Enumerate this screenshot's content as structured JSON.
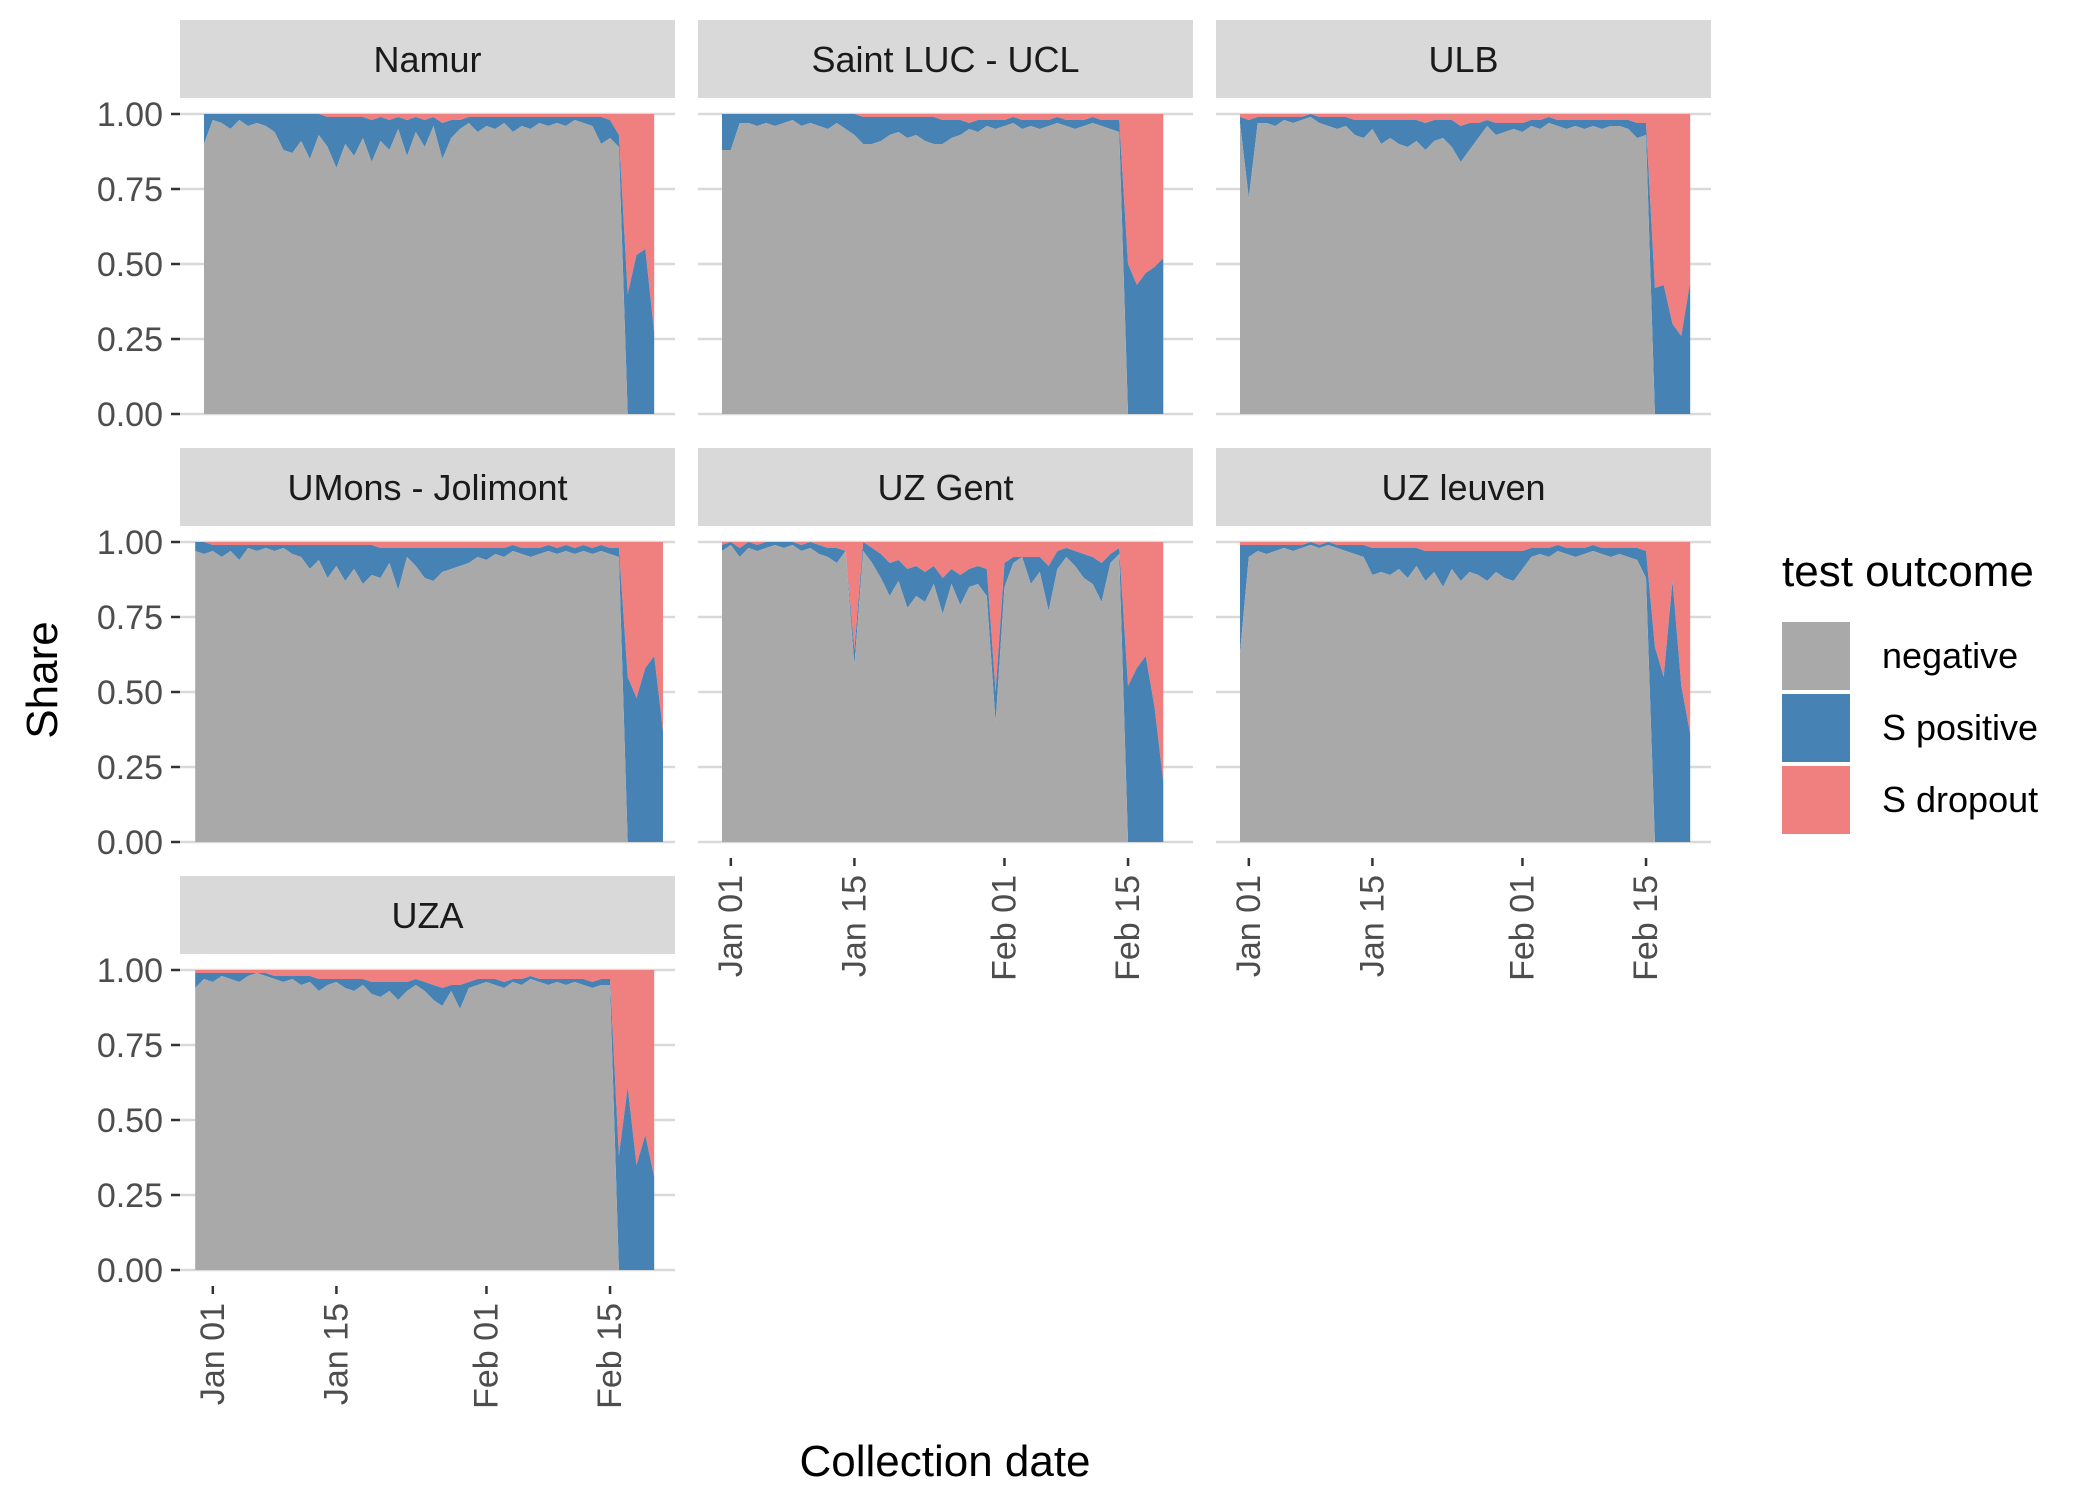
{
  "chart_data": {
    "type": "area",
    "stacked": true,
    "normalized": true,
    "xlabel": "Collection date",
    "ylabel": "Share",
    "x_ticks": [
      "Jan 01",
      "Jan 15",
      "Feb 01",
      "Feb 15"
    ],
    "x_tick_dates": [
      "2021-01-01",
      "2021-01-15",
      "2021-02-01",
      "2021-02-15"
    ],
    "y_ticks": [
      "0.00",
      "0.25",
      "0.50",
      "0.75",
      "1.00"
    ],
    "ylim": [
      0,
      1
    ],
    "grid": true,
    "legend": {
      "title": "test outcome",
      "position": "right",
      "entries": [
        {
          "name": "negative",
          "color": "#A9A9A9"
        },
        {
          "name": "S positive",
          "color": "#4682B4"
        },
        {
          "name": "S dropout",
          "color": "#F08080"
        }
      ]
    },
    "panel_background": "#FFFFFF",
    "strip_background": "#D9D9D9",
    "gridline_color": "#D9D9D9",
    "panels": [
      {
        "label": "Namur",
        "x_start": "2020-12-31",
        "x_end": "2021-02-20",
        "negative": [
          0.9,
          0.98,
          0.97,
          0.95,
          0.98,
          0.96,
          0.97,
          0.96,
          0.94,
          0.88,
          0.87,
          0.91,
          0.85,
          0.93,
          0.89,
          0.82,
          0.9,
          0.86,
          0.92,
          0.84,
          0.91,
          0.88,
          0.95,
          0.86,
          0.94,
          0.89,
          0.96,
          0.85,
          0.92,
          0.95,
          0.97,
          0.94,
          0.96,
          0.95,
          0.97,
          0.94,
          0.96,
          0.95,
          0.97,
          0.96,
          0.97,
          0.96,
          0.98,
          0.97,
          0.96,
          0.9,
          0.92,
          0.89,
          0.0,
          0.0,
          0.0,
          0.0
        ],
        "s_positive": [
          0.1,
          0.02,
          0.03,
          0.05,
          0.02,
          0.04,
          0.03,
          0.04,
          0.06,
          0.12,
          0.13,
          0.09,
          0.15,
          0.07,
          0.1,
          0.17,
          0.09,
          0.13,
          0.07,
          0.14,
          0.08,
          0.1,
          0.04,
          0.12,
          0.05,
          0.09,
          0.03,
          0.12,
          0.06,
          0.03,
          0.02,
          0.05,
          0.03,
          0.04,
          0.02,
          0.05,
          0.03,
          0.04,
          0.02,
          0.03,
          0.02,
          0.03,
          0.01,
          0.02,
          0.03,
          0.09,
          0.06,
          0.04,
          0.4,
          0.53,
          0.55,
          0.27
        ]
      },
      {
        "label": "Saint LUC - UCL",
        "x_start": "2020-12-31",
        "x_end": "2021-02-20",
        "negative": [
          0.88,
          0.88,
          0.97,
          0.97,
          0.96,
          0.97,
          0.96,
          0.97,
          0.98,
          0.96,
          0.97,
          0.96,
          0.95,
          0.97,
          0.95,
          0.93,
          0.9,
          0.9,
          0.91,
          0.93,
          0.94,
          0.92,
          0.93,
          0.91,
          0.9,
          0.9,
          0.92,
          0.93,
          0.95,
          0.94,
          0.96,
          0.95,
          0.96,
          0.97,
          0.95,
          0.96,
          0.95,
          0.96,
          0.97,
          0.96,
          0.95,
          0.96,
          0.97,
          0.96,
          0.95,
          0.94,
          0.0,
          0.0,
          0.0,
          0.0,
          0.0
        ],
        "s_positive": [
          0.12,
          0.12,
          0.03,
          0.03,
          0.04,
          0.03,
          0.04,
          0.03,
          0.02,
          0.04,
          0.03,
          0.04,
          0.05,
          0.03,
          0.05,
          0.07,
          0.09,
          0.09,
          0.08,
          0.06,
          0.05,
          0.07,
          0.06,
          0.08,
          0.09,
          0.08,
          0.06,
          0.05,
          0.02,
          0.04,
          0.02,
          0.03,
          0.02,
          0.02,
          0.03,
          0.02,
          0.03,
          0.02,
          0.02,
          0.02,
          0.03,
          0.02,
          0.02,
          0.02,
          0.03,
          0.04,
          0.5,
          0.43,
          0.47,
          0.49,
          0.52
        ]
      },
      {
        "label": "ULB",
        "x_start": "2020-12-31",
        "x_end": "2021-02-20",
        "negative": [
          0.97,
          0.72,
          0.97,
          0.97,
          0.96,
          0.98,
          0.97,
          0.98,
          0.99,
          0.97,
          0.96,
          0.95,
          0.96,
          0.93,
          0.92,
          0.95,
          0.9,
          0.92,
          0.9,
          0.89,
          0.91,
          0.88,
          0.91,
          0.92,
          0.89,
          0.84,
          0.88,
          0.92,
          0.96,
          0.93,
          0.94,
          0.95,
          0.94,
          0.96,
          0.95,
          0.97,
          0.96,
          0.95,
          0.96,
          0.95,
          0.96,
          0.95,
          0.96,
          0.96,
          0.95,
          0.92,
          0.93,
          0.0,
          0.0,
          0.0,
          0.0,
          0.0
        ],
        "s_positive": [
          0.02,
          0.26,
          0.02,
          0.02,
          0.03,
          0.01,
          0.02,
          0.01,
          0.01,
          0.02,
          0.03,
          0.04,
          0.03,
          0.05,
          0.06,
          0.03,
          0.08,
          0.06,
          0.08,
          0.09,
          0.07,
          0.09,
          0.07,
          0.06,
          0.09,
          0.12,
          0.09,
          0.05,
          0.02,
          0.04,
          0.03,
          0.02,
          0.03,
          0.02,
          0.03,
          0.02,
          0.02,
          0.03,
          0.02,
          0.03,
          0.02,
          0.03,
          0.02,
          0.02,
          0.03,
          0.05,
          0.04,
          0.42,
          0.43,
          0.3,
          0.26,
          0.44
        ]
      },
      {
        "label": "UMons - Jolimont",
        "x_start": "2020-12-30",
        "x_end": "2021-02-20",
        "negative": [
          0.97,
          0.96,
          0.97,
          0.95,
          0.97,
          0.94,
          0.98,
          0.97,
          0.98,
          0.97,
          0.98,
          0.96,
          0.95,
          0.91,
          0.94,
          0.88,
          0.92,
          0.87,
          0.91,
          0.86,
          0.89,
          0.88,
          0.93,
          0.84,
          0.95,
          0.92,
          0.88,
          0.87,
          0.9,
          0.91,
          0.92,
          0.93,
          0.95,
          0.94,
          0.96,
          0.95,
          0.97,
          0.96,
          0.95,
          0.96,
          0.97,
          0.96,
          0.97,
          0.96,
          0.97,
          0.96,
          0.97,
          0.96,
          0.95,
          0.0,
          0.0,
          0.0,
          0.0,
          0.0
        ],
        "s_positive": [
          0.03,
          0.04,
          0.02,
          0.04,
          0.02,
          0.05,
          0.01,
          0.02,
          0.01,
          0.02,
          0.01,
          0.03,
          0.04,
          0.08,
          0.05,
          0.11,
          0.07,
          0.12,
          0.08,
          0.13,
          0.1,
          0.1,
          0.05,
          0.14,
          0.03,
          0.06,
          0.1,
          0.11,
          0.08,
          0.07,
          0.06,
          0.05,
          0.03,
          0.04,
          0.02,
          0.03,
          0.02,
          0.02,
          0.03,
          0.02,
          0.02,
          0.02,
          0.02,
          0.02,
          0.02,
          0.02,
          0.02,
          0.02,
          0.03,
          0.55,
          0.48,
          0.58,
          0.62,
          0.37
        ]
      },
      {
        "label": "UZ Gent",
        "x_start": "2020-12-31",
        "x_end": "2021-02-20",
        "negative": [
          0.97,
          0.99,
          0.95,
          0.98,
          0.97,
          0.98,
          0.99,
          0.98,
          0.99,
          0.97,
          0.98,
          0.96,
          0.95,
          0.93,
          0.97,
          0.59,
          0.97,
          0.93,
          0.88,
          0.82,
          0.87,
          0.78,
          0.82,
          0.8,
          0.86,
          0.76,
          0.86,
          0.79,
          0.85,
          0.86,
          0.82,
          0.4,
          0.85,
          0.93,
          0.95,
          0.86,
          0.9,
          0.77,
          0.91,
          0.95,
          0.92,
          0.88,
          0.86,
          0.8,
          0.93,
          0.96,
          0.0,
          0.0,
          0.0,
          0.0,
          0.0
        ],
        "s_positive": [
          0.02,
          0.01,
          0.03,
          0.02,
          0.02,
          0.02,
          0.01,
          0.02,
          0.01,
          0.02,
          0.02,
          0.03,
          0.03,
          0.05,
          0.0,
          0.05,
          0.03,
          0.05,
          0.08,
          0.11,
          0.07,
          0.13,
          0.1,
          0.1,
          0.06,
          0.12,
          0.05,
          0.1,
          0.06,
          0.06,
          0.09,
          0.1,
          0.08,
          0.02,
          0.0,
          0.09,
          0.05,
          0.15,
          0.06,
          0.03,
          0.05,
          0.08,
          0.09,
          0.13,
          0.03,
          0.02,
          0.52,
          0.58,
          0.62,
          0.45,
          0.2
        ]
      },
      {
        "label": "UZ leuven",
        "x_start": "2020-12-31",
        "x_end": "2021-02-20",
        "negative": [
          0.63,
          0.95,
          0.97,
          0.96,
          0.97,
          0.98,
          0.97,
          0.98,
          0.99,
          0.98,
          0.99,
          0.98,
          0.97,
          0.96,
          0.95,
          0.89,
          0.9,
          0.89,
          0.91,
          0.88,
          0.92,
          0.87,
          0.9,
          0.85,
          0.91,
          0.87,
          0.9,
          0.89,
          0.87,
          0.9,
          0.88,
          0.87,
          0.91,
          0.95,
          0.96,
          0.95,
          0.97,
          0.96,
          0.95,
          0.96,
          0.97,
          0.96,
          0.95,
          0.96,
          0.95,
          0.94,
          0.88,
          0.0,
          0.0,
          0.0,
          0.0,
          0.0
        ],
        "s_positive": [
          0.36,
          0.04,
          0.02,
          0.03,
          0.02,
          0.01,
          0.02,
          0.01,
          0.01,
          0.01,
          0.01,
          0.01,
          0.02,
          0.03,
          0.04,
          0.09,
          0.08,
          0.09,
          0.07,
          0.1,
          0.06,
          0.1,
          0.07,
          0.12,
          0.06,
          0.1,
          0.07,
          0.08,
          0.1,
          0.07,
          0.09,
          0.1,
          0.06,
          0.03,
          0.02,
          0.03,
          0.02,
          0.02,
          0.03,
          0.02,
          0.02,
          0.02,
          0.03,
          0.02,
          0.03,
          0.04,
          0.09,
          0.65,
          0.55,
          0.87,
          0.52,
          0.36
        ]
      },
      {
        "label": "UZA",
        "x_start": "2020-12-30",
        "x_end": "2021-02-20",
        "negative": [
          0.94,
          0.97,
          0.96,
          0.98,
          0.97,
          0.96,
          0.98,
          0.99,
          0.98,
          0.97,
          0.96,
          0.97,
          0.95,
          0.96,
          0.93,
          0.95,
          0.96,
          0.94,
          0.93,
          0.95,
          0.92,
          0.91,
          0.93,
          0.9,
          0.93,
          0.95,
          0.93,
          0.9,
          0.88,
          0.93,
          0.87,
          0.94,
          0.95,
          0.96,
          0.95,
          0.94,
          0.96,
          0.95,
          0.97,
          0.96,
          0.95,
          0.96,
          0.95,
          0.96,
          0.95,
          0.94,
          0.95,
          0.95,
          0.0,
          0.0,
          0.0,
          0.0,
          0.0
        ],
        "s_positive": [
          0.05,
          0.02,
          0.03,
          0.01,
          0.02,
          0.03,
          0.01,
          0.0,
          0.01,
          0.01,
          0.02,
          0.01,
          0.03,
          0.02,
          0.04,
          0.02,
          0.01,
          0.03,
          0.04,
          0.02,
          0.04,
          0.05,
          0.03,
          0.06,
          0.03,
          0.02,
          0.03,
          0.05,
          0.06,
          0.02,
          0.08,
          0.02,
          0.02,
          0.01,
          0.02,
          0.02,
          0.01,
          0.02,
          0.01,
          0.01,
          0.02,
          0.01,
          0.02,
          0.01,
          0.02,
          0.02,
          0.02,
          0.02,
          0.38,
          0.61,
          0.35,
          0.45,
          0.31
        ]
      }
    ]
  }
}
